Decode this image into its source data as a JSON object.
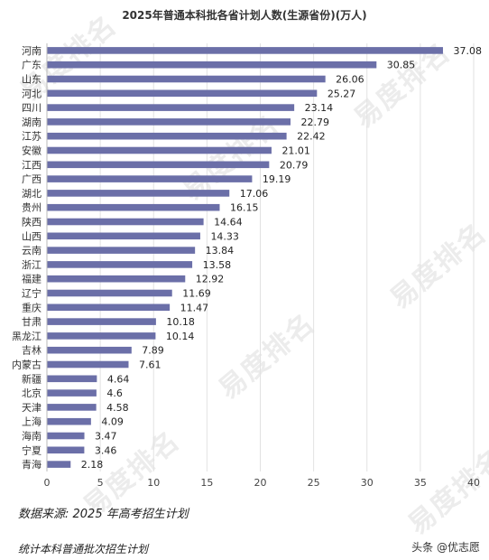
{
  "chart_data": {
    "type": "bar",
    "orientation": "horizontal",
    "title": "2025年普通本科批各省计划人数(生源省份)(万人)",
    "categories": [
      "河南",
      "广东",
      "山东",
      "河北",
      "四川",
      "湖南",
      "江苏",
      "安徽",
      "江西",
      "广西",
      "湖北",
      "贵州",
      "陕西",
      "山西",
      "云南",
      "浙江",
      "福建",
      "辽宁",
      "重庆",
      "甘肃",
      "黑龙江",
      "吉林",
      "内蒙古",
      "新疆",
      "北京",
      "天津",
      "上海",
      "海南",
      "宁夏",
      "青海"
    ],
    "values": [
      37.08,
      30.85,
      26.06,
      25.27,
      23.14,
      22.79,
      22.42,
      21.01,
      20.79,
      19.19,
      17.06,
      16.15,
      14.64,
      14.33,
      13.84,
      13.58,
      12.92,
      11.69,
      11.47,
      10.18,
      10.14,
      7.89,
      7.61,
      4.64,
      4.6,
      4.58,
      4.09,
      3.47,
      3.46,
      2.18
    ],
    "value_labels": [
      "37.08",
      "30.85",
      "26.06",
      "25.27",
      "23.14",
      "22.79",
      "22.42",
      "21.01",
      "20.79",
      "19.19",
      "17.06",
      "16.15",
      "14.64",
      "14.33",
      "13.84",
      "13.58",
      "12.92",
      "11.69",
      "11.47",
      "10.18",
      "10.14",
      "7.89",
      "7.61",
      "4.64",
      "4.6",
      "4.58",
      "4.09",
      "3.47",
      "3.46",
      "2.18"
    ],
    "xlim": [
      0,
      40
    ],
    "xticks": [
      "0",
      "5",
      "10",
      "15",
      "20",
      "25",
      "30",
      "35",
      "40"
    ],
    "bar_color": "#6b6fa8",
    "grid": true
  },
  "source_note": "数据来源: 2025 年高考招生计划",
  "footer_note": "统计本科普通批次招生计划",
  "account": {
    "label": "头条 @优志愿",
    "icon": "toutiao-logo-icon"
  },
  "watermark": {
    "text": "易度排名",
    "icon": "edu-ranking-watermark"
  }
}
